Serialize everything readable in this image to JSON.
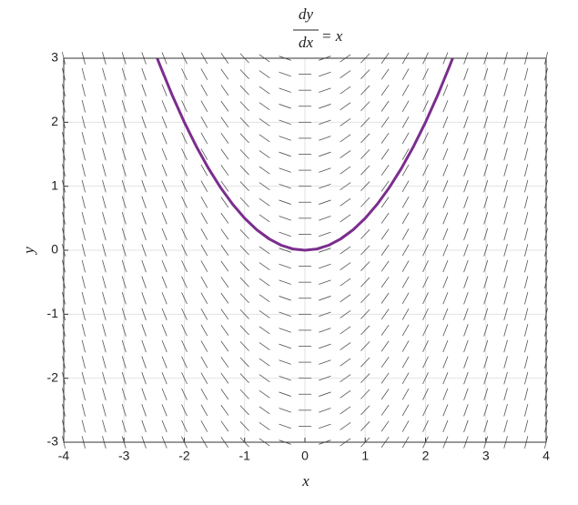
{
  "chart_data": {
    "type": "slope-field",
    "title": {
      "numerator": "dy",
      "denominator": "dx",
      "rhs": "= x"
    },
    "x_label": "x",
    "y_label": "y",
    "xlim": [
      -4,
      4
    ],
    "ylim": [
      -3,
      3
    ],
    "xticks": [
      -4,
      -3,
      -2,
      -1,
      0,
      1,
      2,
      3,
      4
    ],
    "yticks": [
      -3,
      -2,
      -1,
      0,
      1,
      2,
      3
    ],
    "grid": true,
    "field_color": "#555555",
    "field_x": [
      -4,
      -3.67,
      -3.33,
      -3,
      -2.67,
      -2.33,
      -2,
      -1.67,
      -1.33,
      -1,
      -0.67,
      -0.33,
      0,
      0.33,
      0.67,
      1,
      1.33,
      1.67,
      2,
      2.33,
      2.67,
      3,
      3.33,
      3.67,
      4
    ],
    "field_slopes": [
      -4,
      -3.67,
      -3.33,
      -3,
      -2.67,
      -2.33,
      -2,
      -1.67,
      -1.33,
      -1,
      -0.67,
      -0.33,
      0,
      0.33,
      0.67,
      1,
      1.33,
      1.67,
      2,
      2.33,
      2.67,
      3,
      3.33,
      3.67,
      4
    ],
    "field_y": [
      -3,
      -2.75,
      -2.5,
      -2.25,
      -2,
      -1.75,
      -1.5,
      -1.25,
      -1,
      -0.75,
      -0.5,
      -0.25,
      0,
      0.25,
      0.5,
      0.75,
      1,
      1.25,
      1.5,
      1.75,
      2,
      2.25,
      2.5,
      2.75,
      3
    ],
    "series": [
      {
        "color": "#7b2d8e",
        "x": [
          -2.45,
          -2.4,
          -2.2,
          -2,
          -1.8,
          -1.6,
          -1.4,
          -1.2,
          -1,
          -0.8,
          -0.6,
          -0.4,
          -0.2,
          0,
          0.2,
          0.4,
          0.6,
          0.8,
          1,
          1.2,
          1.4,
          1.6,
          1.8,
          2,
          2.2,
          2.4,
          2.45
        ],
        "values": [
          3,
          2.88,
          2.42,
          2,
          1.62,
          1.28,
          0.98,
          0.72,
          0.5,
          0.32,
          0.18,
          0.08,
          0.02,
          0,
          0.02,
          0.08,
          0.18,
          0.32,
          0.5,
          0.72,
          0.98,
          1.28,
          1.62,
          2,
          2.42,
          2.88,
          3
        ]
      }
    ]
  }
}
